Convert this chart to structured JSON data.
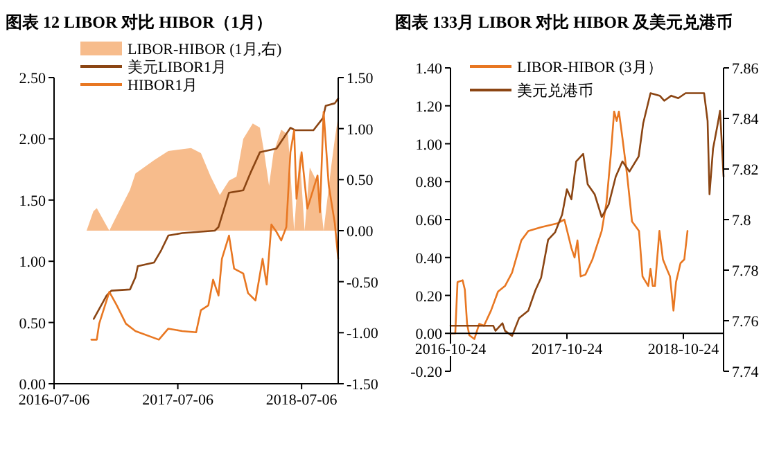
{
  "chart_data": [
    {
      "type": "line",
      "title": "图表 12 LIBOR 对比 HIBOR（1月）",
      "legend": "top",
      "grid": false,
      "xlim": [
        "2016-07-06",
        "2018-10-22"
      ],
      "xticks": [
        "2016-07-06",
        "2017-07-06",
        "2018-07-06"
      ],
      "ylim": [
        0,
        2.5
      ],
      "yticks": [
        {
          "value": 0,
          "label": "0.00"
        },
        {
          "value": 0.5,
          "label": "0.50"
        },
        {
          "value": 1,
          "label": "1.00"
        },
        {
          "value": 1.5,
          "label": "1.50"
        },
        {
          "value": 2,
          "label": "2.00"
        },
        {
          "value": 2.5,
          "label": "2.50"
        }
      ],
      "y2lim": [
        -1.5,
        1.5
      ],
      "y2ticks": [
        {
          "value": -1.5,
          "label": "-1.50"
        },
        {
          "value": -1,
          "label": "-1.00"
        },
        {
          "value": -0.5,
          "label": "-0.50"
        },
        {
          "value": 0,
          "label": "0.00"
        },
        {
          "value": 0.5,
          "label": "0.50"
        },
        {
          "value": 1,
          "label": "1.00"
        },
        {
          "value": 1.5,
          "label": "1.50"
        }
      ],
      "series": [
        {
          "name": "LIBOR-HIBOR (1月,右)",
          "type": "area",
          "axis": "y2",
          "color": "#f7bc8c",
          "x": [
            "2016-10-10",
            "2016-10-30",
            "2016-11-09",
            "2016-12-16",
            "2016-12-31",
            "2017-02-15",
            "2017-03-03",
            "2017-04-27",
            "2017-06-08",
            "2017-08-14",
            "2017-09-12",
            "2017-10-11",
            "2017-11-07",
            "2017-12-04",
            "2017-12-26",
            "2018-01-15",
            "2018-02-12",
            "2018-03-05",
            "2018-03-18",
            "2018-04-01",
            "2018-04-14",
            "2018-05-07",
            "2018-05-27",
            "2018-06-14",
            "2018-06-30",
            "2018-07-15",
            "2018-07-30",
            "2018-08-26",
            "2018-09-09",
            "2018-10-01",
            "2018-10-12",
            "2018-10-22"
          ],
          "values": [
            0,
            0.19,
            0.22,
            0,
            0.1,
            0.4,
            0.56,
            0.69,
            0.78,
            0.81,
            0.76,
            0.53,
            0.35,
            0.49,
            0.53,
            0.9,
            1.05,
            1.01,
            0.76,
            0.44,
            0.76,
            0.99,
            0.94,
            0,
            0.76,
            0,
            0.62,
            0.44,
            0,
            0.62,
            0.9,
            1.12
          ]
        },
        {
          "name": "美元LIBOR1月",
          "color": "#8b4513",
          "x": [
            "2016-10-31",
            "2016-12-08",
            "2016-12-22",
            "2017-02-15",
            "2017-03-03",
            "2017-03-10",
            "2017-04-27",
            "2017-05-18",
            "2017-06-08",
            "2017-07-19",
            "2017-10-23",
            "2017-11-03",
            "2017-12-04",
            "2018-01-15",
            "2018-02-05",
            "2018-03-05",
            "2018-04-23",
            "2018-06-03",
            "2018-06-17",
            "2018-08-10",
            "2018-09-07",
            "2018-09-15",
            "2018-10-12",
            "2018-10-22"
          ],
          "values": [
            0.53,
            0.72,
            0.76,
            0.77,
            0.87,
            0.96,
            0.99,
            1.09,
            1.21,
            1.23,
            1.25,
            1.28,
            1.56,
            1.58,
            1.72,
            1.89,
            1.92,
            2.09,
            2.07,
            2.07,
            2.17,
            2.27,
            2.29,
            2.33
          ]
        },
        {
          "name": "HIBOR1月",
          "color": "#e87722",
          "x": [
            "2016-10-24",
            "2016-11-09",
            "2016-11-16",
            "2016-12-16",
            "2017-01-07",
            "2017-02-03",
            "2017-03-03",
            "2017-05-11",
            "2017-06-08",
            "2017-07-19",
            "2017-08-29",
            "2017-09-12",
            "2017-10-04",
            "2017-10-18",
            "2017-11-03",
            "2017-11-13",
            "2017-12-04",
            "2017-12-19",
            "2018-01-15",
            "2018-01-29",
            "2018-02-20",
            "2018-03-13",
            "2018-03-25",
            "2018-04-08",
            "2018-04-23",
            "2018-05-07",
            "2018-05-22",
            "2018-06-03",
            "2018-06-14",
            "2018-06-21",
            "2018-07-06",
            "2018-07-23",
            "2018-08-22",
            "2018-08-29",
            "2018-09-09",
            "2018-09-24",
            "2018-10-12",
            "2018-10-22"
          ],
          "values": [
            0.36,
            0.36,
            0.49,
            0.75,
            0.64,
            0.49,
            0.43,
            0.36,
            0.45,
            0.43,
            0.42,
            0.6,
            0.64,
            0.85,
            0.72,
            1.02,
            1.21,
            0.94,
            0.9,
            0.74,
            0.68,
            1.02,
            0.81,
            1.3,
            1.24,
            1.17,
            1.28,
            1.89,
            2.07,
            1.51,
            1.89,
            1.43,
            1.7,
            1.4,
            2.22,
            1.62,
            1.31,
            1.02
          ]
        }
      ]
    },
    {
      "type": "line",
      "title": "图表 133月 LIBOR 对比 HIBOR 及美元兑港币",
      "legend": "top",
      "grid": false,
      "xlim": [
        "2016-10-24",
        "2019-02-27"
      ],
      "xticks": [
        "2016-10-24",
        "2017-10-24",
        "2018-10-24"
      ],
      "ylim": [
        -0.2,
        1.4
      ],
      "yticks": [
        {
          "value": -0.2,
          "label": "-0.20"
        },
        {
          "value": 0,
          "label": "0.00"
        },
        {
          "value": 0.2,
          "label": "0.20"
        },
        {
          "value": 0.4,
          "label": "0.40"
        },
        {
          "value": 0.6,
          "label": "0.60"
        },
        {
          "value": 0.8,
          "label": "0.80"
        },
        {
          "value": 1,
          "label": "1.00"
        },
        {
          "value": 1.2,
          "label": "1.20"
        },
        {
          "value": 1.4,
          "label": "1.40"
        }
      ],
      "y2lim": [
        7.74,
        7.86
      ],
      "y2ticks": [
        7.74,
        7.76,
        7.78,
        7.8,
        7.82,
        7.84,
        7.86
      ],
      "series": [
        {
          "name": "LIBOR-HIBOR (3月）",
          "color": "#e87722",
          "x": [
            "2016-10-24",
            "2016-11-08",
            "2016-11-15",
            "2016-12-01",
            "2016-12-08",
            "2016-12-15",
            "2016-12-22",
            "2017-01-07",
            "2017-01-22",
            "2017-02-06",
            "2017-02-28",
            "2017-03-22",
            "2017-04-13",
            "2017-05-05",
            "2017-06-03",
            "2017-06-25",
            "2017-08-04",
            "2017-09-24",
            "2017-10-16",
            "2017-11-07",
            "2017-11-17",
            "2017-11-26",
            "2017-12-06",
            "2017-12-21",
            "2018-01-12",
            "2018-02-10",
            "2018-02-25",
            "2018-03-11",
            "2018-03-21",
            "2018-03-29",
            "2018-04-05",
            "2018-04-16",
            "2018-05-01",
            "2018-05-16",
            "2018-06-07",
            "2018-06-18",
            "2018-07-06",
            "2018-07-13",
            "2018-07-20",
            "2018-07-27",
            "2018-08-10",
            "2018-08-21",
            "2018-09-02",
            "2018-09-12",
            "2018-09-23",
            "2018-10-01",
            "2018-10-15",
            "2018-10-27",
            "2018-11-06"
          ],
          "values": [
            0,
            0,
            0.27,
            0.28,
            0.23,
            0.05,
            -0.01,
            -0.03,
            0.05,
            0.04,
            0.12,
            0.22,
            0.25,
            0.32,
            0.49,
            0.54,
            0.56,
            0.58,
            0.6,
            0.45,
            0.4,
            0.49,
            0.3,
            0.31,
            0.39,
            0.54,
            0.69,
            0.95,
            1.17,
            1.12,
            1.17,
            1.03,
            0.83,
            0.59,
            0.54,
            0.3,
            0.25,
            0.34,
            0.25,
            0.25,
            0.54,
            0.39,
            0.34,
            0.3,
            0.12,
            0.27,
            0.37,
            0.39,
            0.54
          ]
        },
        {
          "name": "美元兑港币",
          "axis": "y2",
          "color": "#8b4513",
          "x": [
            "2016-10-24",
            "2017-03-07",
            "2017-03-14",
            "2017-04-05",
            "2017-04-13",
            "2017-05-05",
            "2017-05-27",
            "2017-06-25",
            "2017-07-17",
            "2017-08-04",
            "2017-08-26",
            "2017-09-17",
            "2017-10-09",
            "2017-10-24",
            "2017-11-07",
            "2017-11-22",
            "2017-12-14",
            "2017-12-28",
            "2018-01-19",
            "2018-02-10",
            "2018-03-04",
            "2018-03-26",
            "2018-04-16",
            "2018-05-08",
            "2018-06-06",
            "2018-06-20",
            "2018-07-13",
            "2018-08-11",
            "2018-08-25",
            "2018-09-16",
            "2018-10-08",
            "2018-10-31",
            "2018-12-28",
            "2019-01-08",
            "2019-01-14",
            "2019-01-25",
            "2019-02-09",
            "2019-02-16",
            "2019-02-27"
          ],
          "values": [
            7.758,
            7.758,
            7.756,
            7.759,
            7.756,
            7.754,
            7.761,
            7.764,
            7.772,
            7.777,
            7.792,
            7.795,
            7.802,
            7.812,
            7.808,
            7.823,
            7.826,
            7.814,
            7.81,
            7.801,
            7.806,
            7.817,
            7.823,
            7.819,
            7.825,
            7.838,
            7.85,
            7.849,
            7.847,
            7.849,
            7.848,
            7.85,
            7.85,
            7.839,
            7.81,
            7.828,
            7.838,
            7.843,
            7.817
          ]
        }
      ]
    }
  ]
}
